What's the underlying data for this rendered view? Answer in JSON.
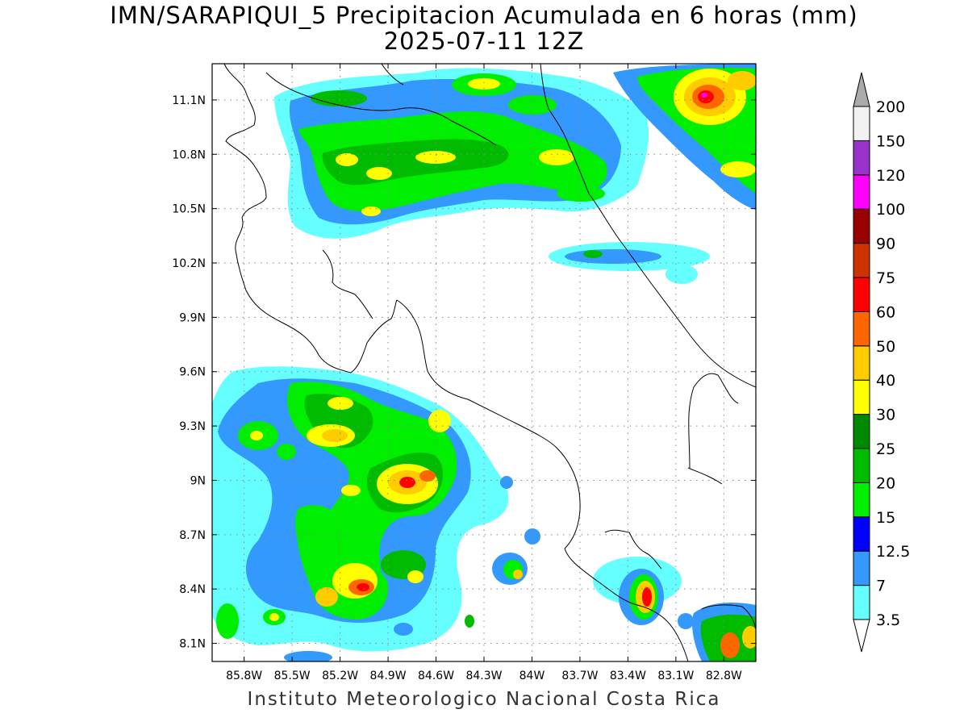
{
  "title": {
    "line1": "IMN/SARAPIQUI_5 Precipitacion Acumulada en 6 horas (mm)",
    "line2": "2025-07-11 12Z"
  },
  "footer": "Instituto Meteorologico Nacional Costa Rica",
  "map": {
    "lon_range": [
      -86.0,
      -82.6
    ],
    "lat_range": [
      8.0,
      11.3
    ],
    "lat_ticks": [
      {
        "value": 11.1,
        "label": "11.1N"
      },
      {
        "value": 10.8,
        "label": "10.8N"
      },
      {
        "value": 10.5,
        "label": "10.5N"
      },
      {
        "value": 10.2,
        "label": "10.2N"
      },
      {
        "value": 9.9,
        "label": "9.9N"
      },
      {
        "value": 9.6,
        "label": "9.6N"
      },
      {
        "value": 9.3,
        "label": "9.3N"
      },
      {
        "value": 9.0,
        "label": "9N"
      },
      {
        "value": 8.7,
        "label": "8.7N"
      },
      {
        "value": 8.4,
        "label": "8.4N"
      },
      {
        "value": 8.1,
        "label": "8.1N"
      }
    ],
    "lon_ticks": [
      {
        "value": -85.8,
        "label": "85.8W"
      },
      {
        "value": -85.5,
        "label": "85.5W"
      },
      {
        "value": -85.2,
        "label": "85.2W"
      },
      {
        "value": -84.9,
        "label": "84.9W"
      },
      {
        "value": -84.6,
        "label": "84.6W"
      },
      {
        "value": -84.3,
        "label": "84.3W"
      },
      {
        "value": -84.0,
        "label": "84W"
      },
      {
        "value": -83.7,
        "label": "83.7W"
      },
      {
        "value": -83.4,
        "label": "83.4W"
      },
      {
        "value": -83.1,
        "label": "83.1W"
      },
      {
        "value": -82.8,
        "label": "82.8W"
      }
    ],
    "grid": "dotted"
  },
  "colorbar": {
    "levels": [
      {
        "label": "3.5",
        "color": "#66ffff"
      },
      {
        "label": "7",
        "color": "#3399ff"
      },
      {
        "label": "12.5",
        "color": "#0000ff"
      },
      {
        "label": "15",
        "color": "#00ee00"
      },
      {
        "label": "20",
        "color": "#00bb00"
      },
      {
        "label": "25",
        "color": "#008800"
      },
      {
        "label": "30",
        "color": "#ffff00"
      },
      {
        "label": "40",
        "color": "#ffcc00"
      },
      {
        "label": "50",
        "color": "#ff6600"
      },
      {
        "label": "60",
        "color": "#ff0000"
      },
      {
        "label": "75",
        "color": "#cc3300"
      },
      {
        "label": "90",
        "color": "#990000"
      },
      {
        "label": "100",
        "color": "#ff00ff"
      },
      {
        "label": "120",
        "color": "#9933cc"
      },
      {
        "label": "150",
        "color": "#f2f2f2"
      },
      {
        "label": "200",
        "color": "#aaaaaa"
      }
    ],
    "under_color": "#ffffff"
  }
}
